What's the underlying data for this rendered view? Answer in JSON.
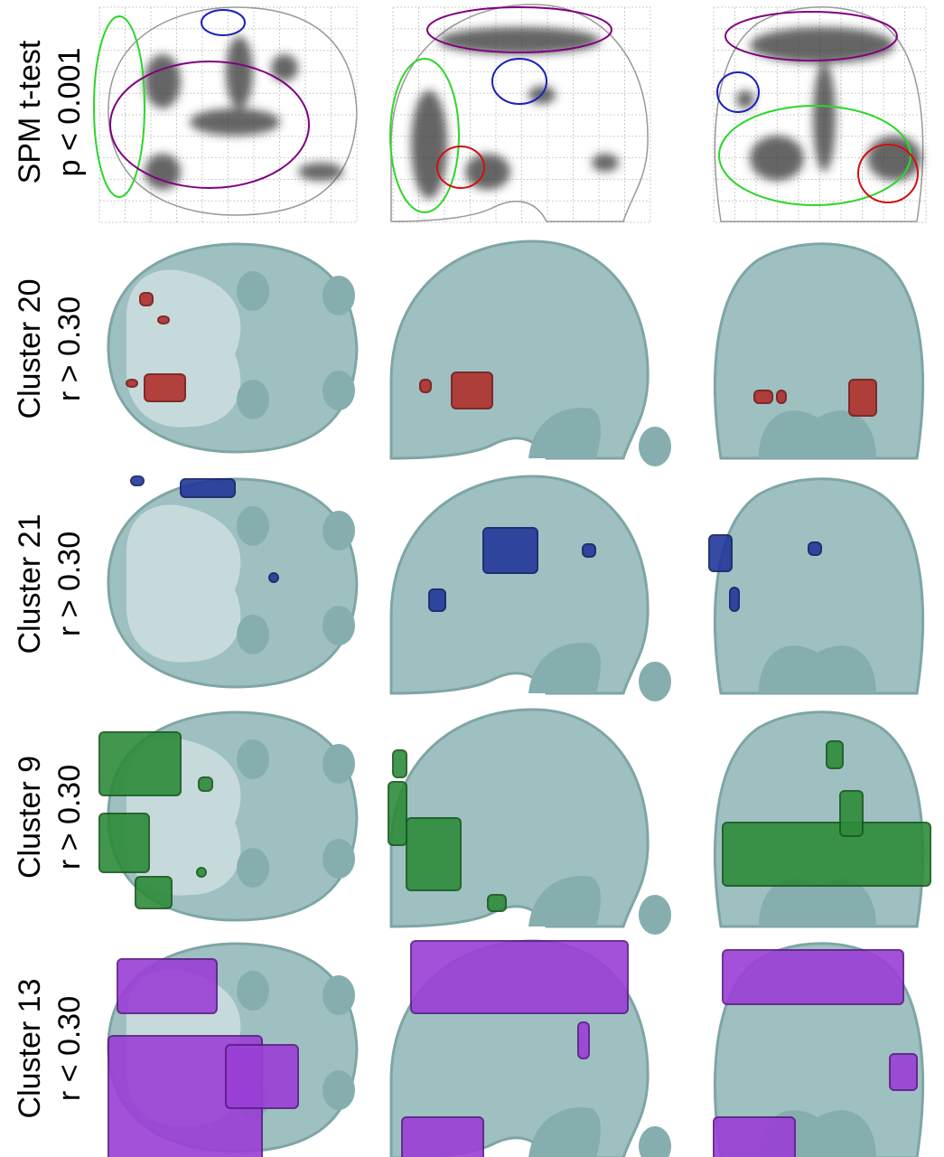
{
  "rows": [
    {
      "label": "SPM t-test",
      "sublabel": "p < 0.001"
    },
    {
      "label": "Cluster 20",
      "sublabel": "r > 0.30"
    },
    {
      "label": "Cluster 21",
      "sublabel": "r > 0.30"
    },
    {
      "label": "Cluster 9",
      "sublabel": "r > 0.30"
    },
    {
      "label": "Cluster 13",
      "sublabel": "r < 0.30"
    }
  ]
}
